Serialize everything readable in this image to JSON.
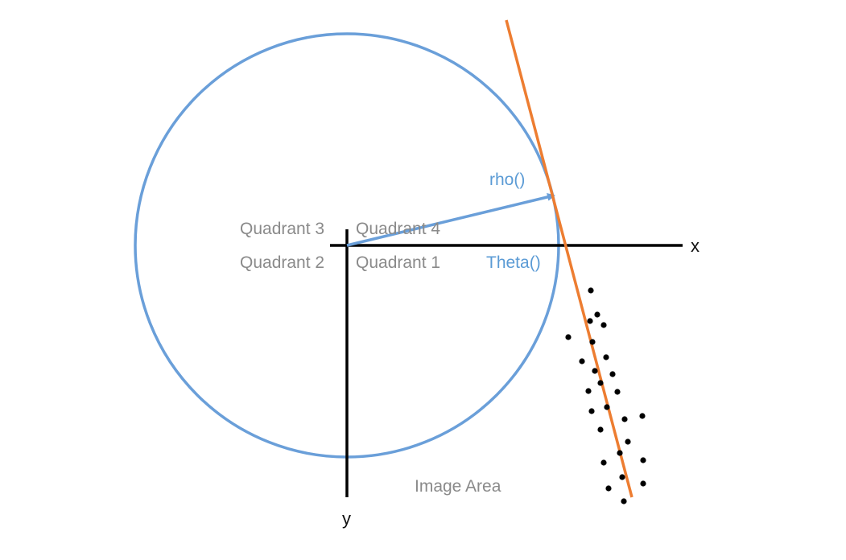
{
  "colors": {
    "circle": "#6a9fd9",
    "line": "#ed7d31",
    "axes": "#000000",
    "points": "#000000",
    "quadrant_text": "#8a8a8a",
    "param_text": "#5b9bd5"
  },
  "labels": {
    "quadrant_3": "Quadrant 3",
    "quadrant_4": "Quadrant 4",
    "quadrant_2": "Quadrant 2",
    "quadrant_1": "Quadrant 1",
    "rho": "rho()",
    "theta": "Theta()",
    "x_axis": "x",
    "y_axis": "y",
    "image_area": "Image Area"
  },
  "points_count": 26
}
